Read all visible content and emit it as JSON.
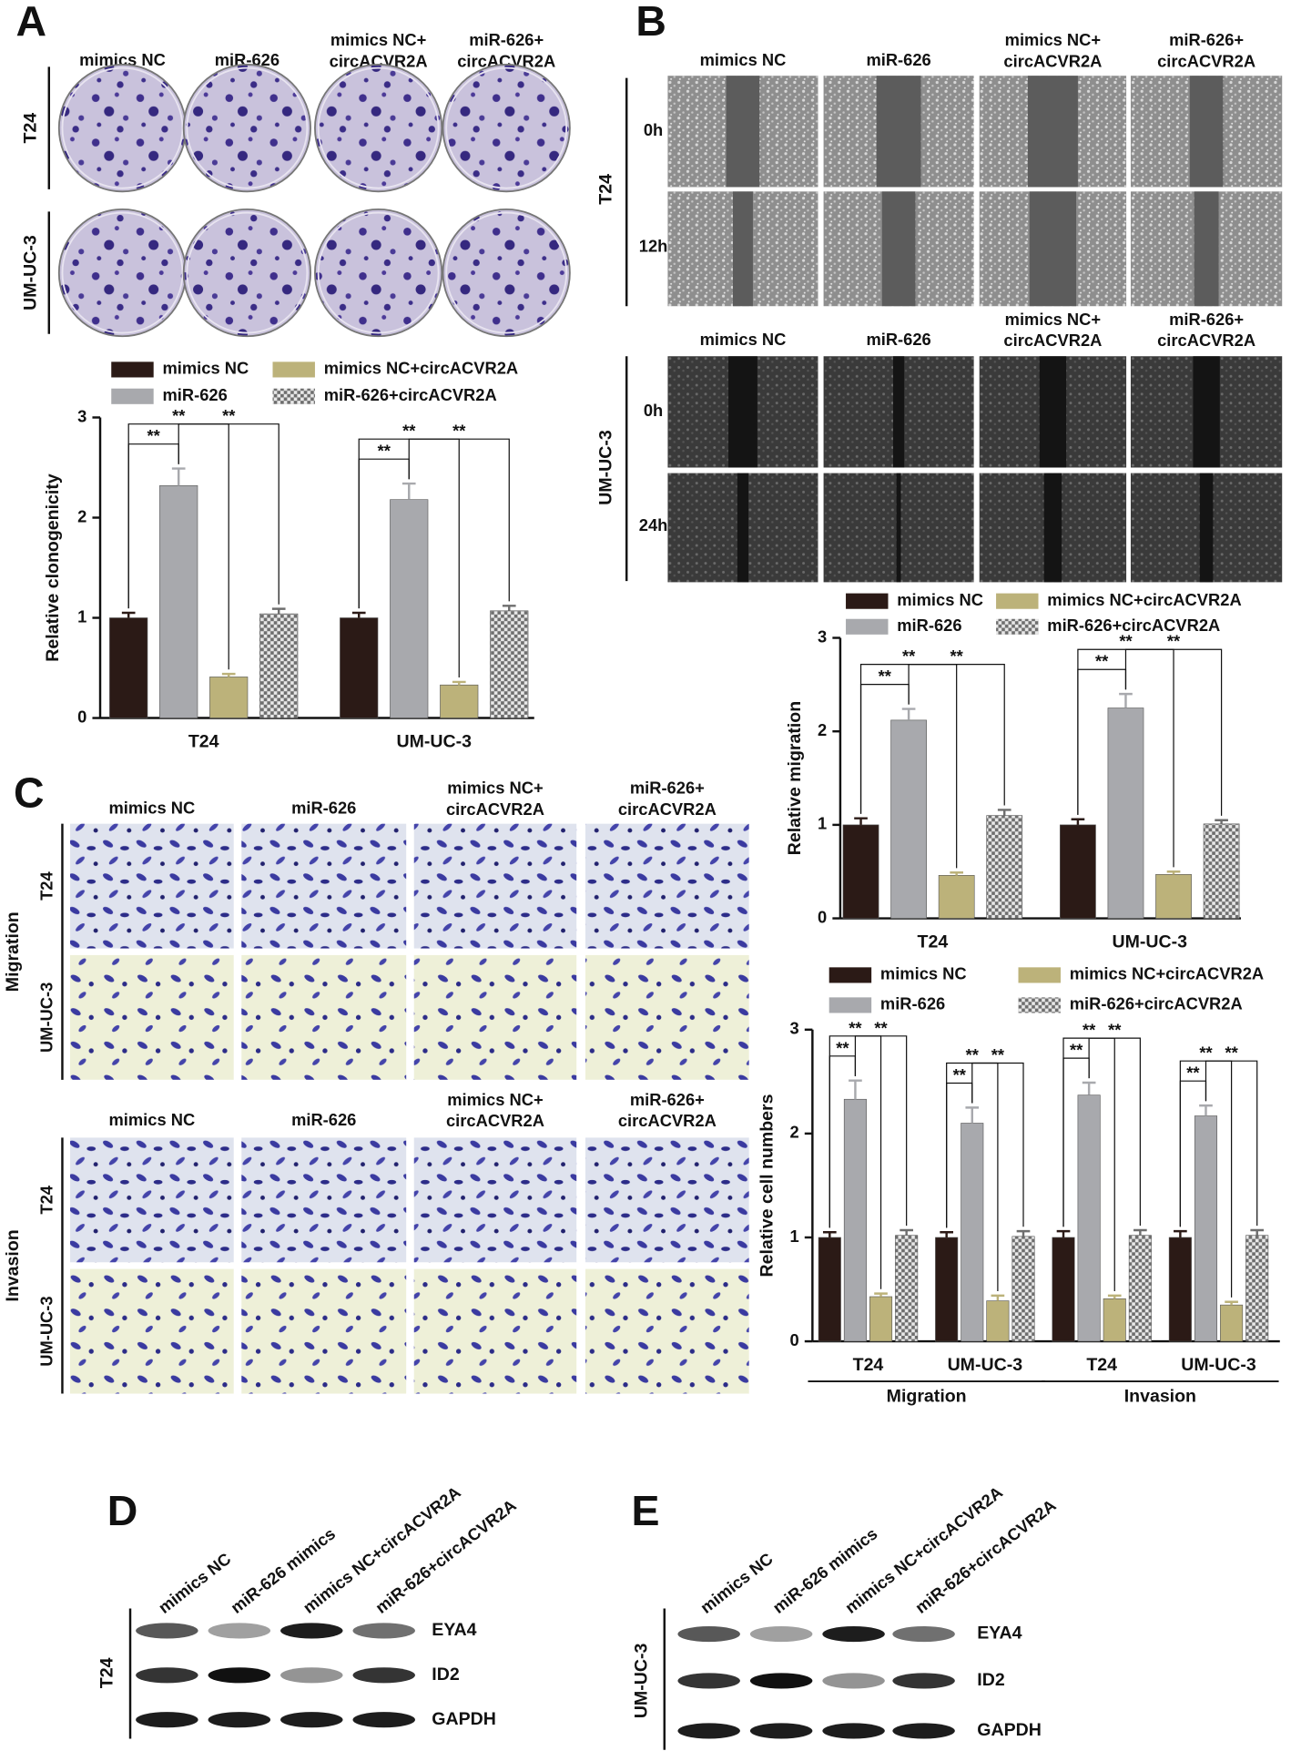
{
  "panel_labels": [
    "A",
    "B",
    "C",
    "D",
    "E"
  ],
  "image_columns": [
    [
      "mimics NC"
    ],
    [
      "miR-626"
    ],
    [
      "mimics NC+",
      "circACVR2A"
    ],
    [
      "miR-626+",
      "circACVR2A"
    ]
  ],
  "panel_a_rows": [
    "T24",
    "UM-UC-3"
  ],
  "panel_b": {
    "cell_lines": [
      "T24",
      "UM-UC-3"
    ],
    "t24_times": [
      "0h",
      "12h"
    ],
    "umuc3_times": [
      "0h",
      "24h"
    ]
  },
  "panel_c": {
    "assays": [
      "Migration",
      "Invasion"
    ],
    "rows": [
      "T24",
      "UM-UC-3"
    ]
  },
  "blots": {
    "lanes": [
      "mimics NC",
      "miR-626 mimics",
      "mimics NC+circACVR2A",
      "miR-626+circACVR2A"
    ],
    "proteins": [
      "EYA4",
      "ID2",
      "GAPDH"
    ],
    "d_cell_line": "T24",
    "e_cell_line": "UM-UC-3"
  },
  "chart_data": [
    {
      "type": "bar",
      "ylabel": "Relative clonogenicity",
      "categories": [
        "T24",
        "UM-UC-3"
      ],
      "ylim": [
        0,
        3
      ],
      "yticks": [
        0,
        1,
        2,
        3
      ],
      "significance_label": "**",
      "series": [
        {
          "name": "mimics NC",
          "color": "#2b1a16",
          "values": [
            1.0,
            1.0
          ],
          "errors": [
            0.05,
            0.05
          ]
        },
        {
          "name": "miR-626",
          "color": "#a8a9ad",
          "values": [
            2.32,
            2.18
          ],
          "errors": [
            0.17,
            0.16
          ]
        },
        {
          "name": "mimics NC+circACVR2A",
          "color": "#bcb27a",
          "values": [
            0.41,
            0.33
          ],
          "errors": [
            0.03,
            0.03
          ]
        },
        {
          "name": "miR-626+circACVR2A",
          "color": "#6e6e6e",
          "pattern": "checker",
          "values": [
            1.04,
            1.07
          ],
          "errors": [
            0.05,
            0.05
          ]
        }
      ]
    },
    {
      "type": "bar",
      "ylabel": "Relative migration",
      "categories": [
        "T24",
        "UM-UC-3"
      ],
      "ylim": [
        0,
        3
      ],
      "yticks": [
        0,
        1,
        2,
        3
      ],
      "significance_label": "**",
      "series": [
        {
          "name": "mimics NC",
          "color": "#2b1a16",
          "values": [
            1.0,
            1.0
          ],
          "errors": [
            0.07,
            0.06
          ]
        },
        {
          "name": "miR-626",
          "color": "#a8a9ad",
          "values": [
            2.12,
            2.25
          ],
          "errors": [
            0.12,
            0.15
          ]
        },
        {
          "name": "mimics NC+circACVR2A",
          "color": "#bcb27a",
          "values": [
            0.46,
            0.47
          ],
          "errors": [
            0.03,
            0.03
          ]
        },
        {
          "name": "miR-626+circACVR2A",
          "color": "#6e6e6e",
          "pattern": "checker",
          "values": [
            1.1,
            1.01
          ],
          "errors": [
            0.06,
            0.04
          ]
        }
      ]
    },
    {
      "type": "bar",
      "ylabel": "Relative cell numbers",
      "categories": [
        "T24",
        "UM-UC-3",
        "T24",
        "UM-UC-3"
      ],
      "groups": [
        "Migration",
        "Invasion"
      ],
      "ylim": [
        0,
        3
      ],
      "yticks": [
        0,
        1,
        2,
        3
      ],
      "significance_label": "**",
      "series": [
        {
          "name": "mimics NC",
          "color": "#2b1a16",
          "values": [
            1.0,
            1.0,
            1.0,
            1.0
          ],
          "errors": [
            0.05,
            0.05,
            0.06,
            0.06
          ]
        },
        {
          "name": "miR-626",
          "color": "#a8a9ad",
          "values": [
            2.33,
            2.1,
            2.37,
            2.17
          ],
          "errors": [
            0.18,
            0.15,
            0.12,
            0.1
          ]
        },
        {
          "name": "mimics NC+circACVR2A",
          "color": "#bcb27a",
          "values": [
            0.43,
            0.39,
            0.41,
            0.35
          ],
          "errors": [
            0.03,
            0.05,
            0.03,
            0.03
          ]
        },
        {
          "name": "miR-626+circACVR2A",
          "color": "#6e6e6e",
          "pattern": "checker",
          "values": [
            1.02,
            1.01,
            1.02,
            1.02
          ],
          "errors": [
            0.05,
            0.05,
            0.05,
            0.05
          ]
        }
      ]
    }
  ]
}
